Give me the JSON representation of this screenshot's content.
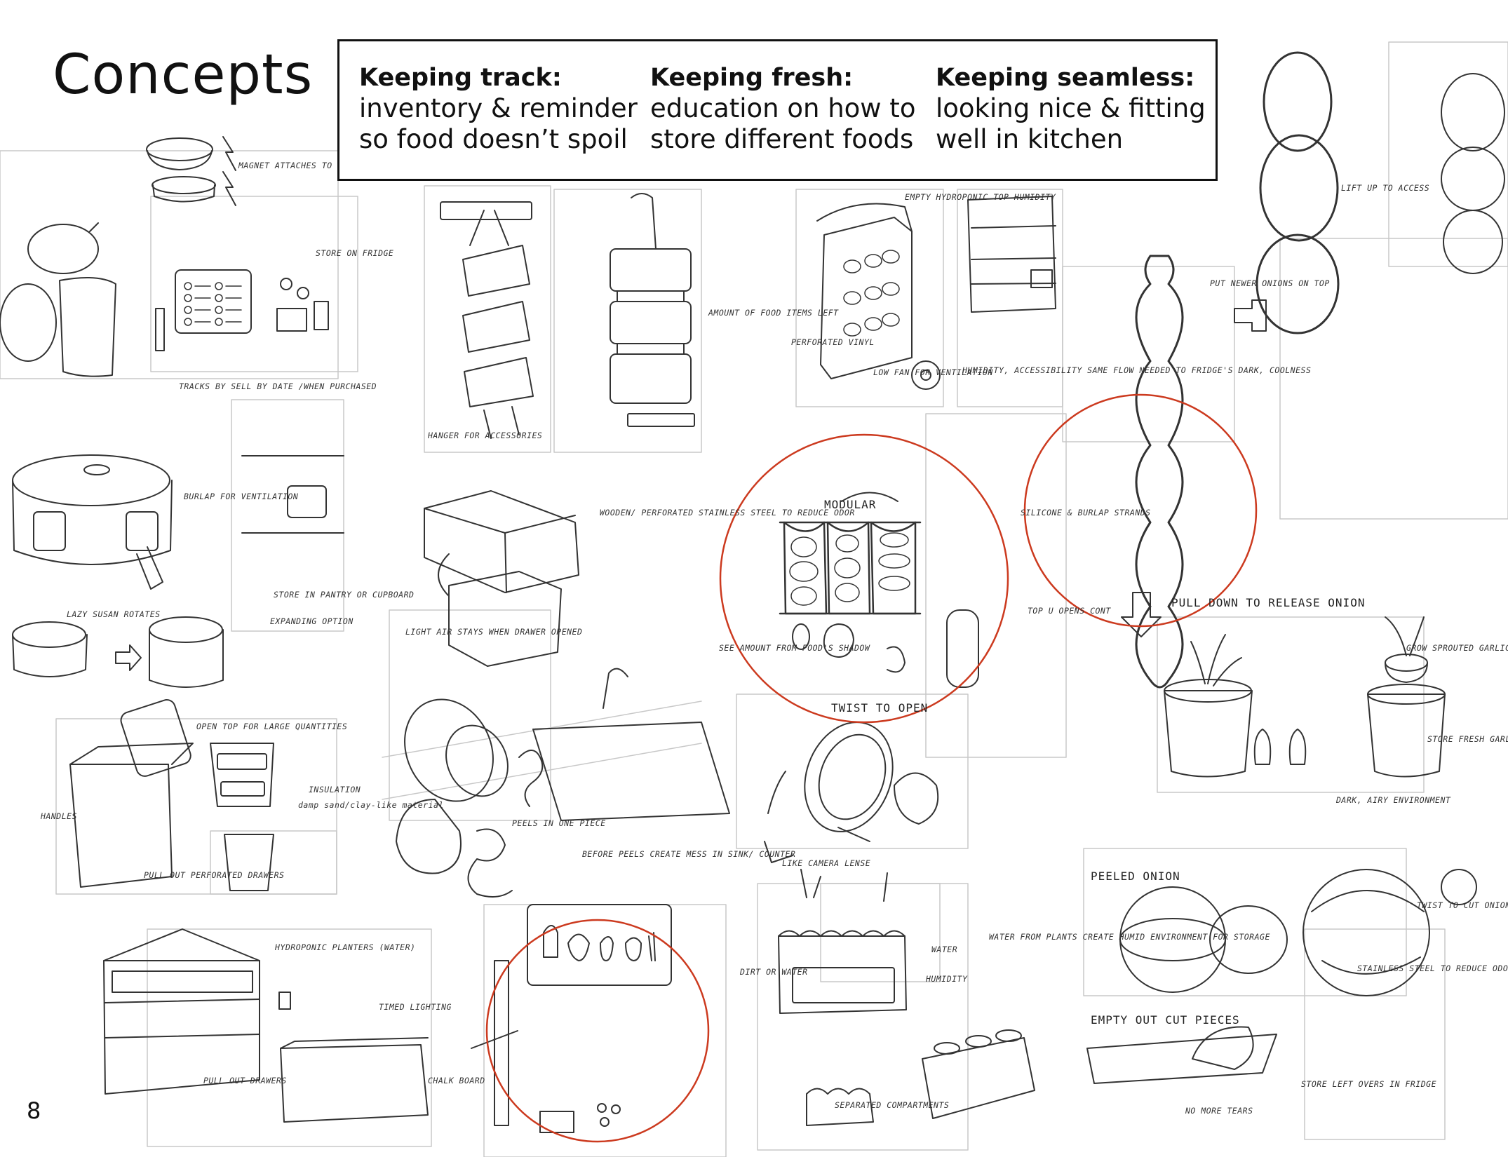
{
  "page": {
    "title": "Concepts",
    "page_number": "8"
  },
  "themes": [
    {
      "heading": "Keeping track:",
      "lines": [
        "inventory & reminder",
        "so food doesn’t spoil"
      ]
    },
    {
      "heading": "Keeping fresh:",
      "lines": [
        "education on how to",
        "store different foods"
      ]
    },
    {
      "heading": "Keeping seamless:",
      "lines": [
        "looking nice & fitting",
        "well in kitchen"
      ]
    }
  ],
  "annotations": {
    "magnet": "MAGNET ATTACHES TO FOOD",
    "store_fridge": "STORE ON FRIDGE",
    "tracks": "TRACKS BY SELL BY DATE /WHEN PURCHASED",
    "burlap": "BURLAP FOR VENTILATION",
    "pantry": "STORE IN PANTRY OR CUPBOARD",
    "lazy_susan": "LAZY SUSAN ROTATES",
    "expanding": "EXPANDING OPTION",
    "open_top": "OPEN TOP FOR LARGE QUANTITIES",
    "insulation": "INSULATION",
    "damp_sand": "damp sand/clay-like material",
    "handles": "HANDLES",
    "pull_out_drawers": "PULL OUT PERFORATED DRAWERS",
    "hanger": "HANGER FOR ACCESSORIES",
    "amount_left": "AMOUNT OF FOOD ITEMS LEFT",
    "wooden": "WOODEN/ PERFORATED STAINLESS STEEL TO REDUCE ODOR",
    "light_air": "LIGHT AIR STAYS WHEN DRAWER OPENED",
    "peels": "PEELS IN ONE PIECE",
    "before_peels": "BEFORE PEELS CREATE MESS IN SINK/ COUNTER",
    "hydroponic_top": "EMPTY HYDROPONIC TOP HUMIDITY",
    "perforated_vinyl": "PERFORATED VINYL",
    "low_fan": "LOW FAN FOR VENTILATION",
    "humidity": "HUMIDITY, ACCESSIBILITY SAME FLOW NEEDED TO FRIDGE'S DARK, COOLNESS",
    "modular": "MODULAR",
    "see_amount": "SEE AMOUNT FROM FOOD'S SHADOW",
    "twist_open": "TWIST TO OPEN",
    "camera_lense": "LIKE CAMERA LENSE",
    "top_opens": "TOP U OPENS CONT",
    "silicone": "SILICONE & BURLAP STRANDS",
    "pull_down": "PULL DOWN TO RELEASE ONION",
    "put_newer": "PUT NEWER ONIONS ON TOP",
    "lift_up": "LIFT UP TO ACCESS",
    "grow_garlic": "GROW SPROUTED GARLIC IN WATER",
    "store_fresh": "STORE FRESH GARLIC",
    "dark_airy": "DARK, AIRY ENVIRONMENT",
    "peeled_onion": "PEELED ONION",
    "twist_cut": "TWIST TO CUT ONION",
    "stainless": "STAINLESS STEEL TO REDUCE ODORS, SILICONE FOR GRIP",
    "empty_cut": "EMPTY OUT CUT PIECES",
    "no_tears": "NO MORE TEARS",
    "store_leftovers": "STORE LEFT OVERS IN FRIDGE",
    "hydroponic_planters": "HYDROPONIC PLANTERS (WATER)",
    "timed_lighting": "TIMED LIGHTING",
    "chalk_board": "CHALK BOARD",
    "pull_out": "PULL OUT DRAWERS",
    "dirt_water": "DIRT OR WATER",
    "water": "WATER",
    "humidity2": "HUMIDITY",
    "water_plants": "WATER FROM PLANTS CREATE HUMID ENVIRONMENT FOR STORAGE",
    "separated": "SEPARATED COMPARTMENTS"
  },
  "colors": {
    "ink": "#222222",
    "highlight": "#cc3a1f",
    "frame": "#111111"
  }
}
